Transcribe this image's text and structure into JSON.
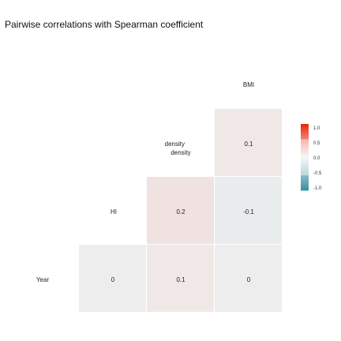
{
  "chart_data": {
    "type": "heatmap",
    "title": "Pairwise correlations with Spearman coefficient",
    "variables": [
      "Year",
      "HI",
      "density",
      "BMI"
    ],
    "cells": [
      {
        "row": "HI",
        "col": "density",
        "value": 0.2,
        "label": "0.2"
      },
      {
        "row": "HI",
        "col": "BMI",
        "value": -0.1,
        "label": "-0.1"
      },
      {
        "row": "Year",
        "col": "HI",
        "value": 0.0,
        "label": "0"
      },
      {
        "row": "Year",
        "col": "density",
        "value": 0.1,
        "label": "0.1"
      },
      {
        "row": "Year",
        "col": "BMI",
        "value": 0.0,
        "label": "0"
      },
      {
        "row": "density",
        "col": "BMI",
        "value": 0.1,
        "label": "0.1"
      }
    ],
    "legend": {
      "position": "right",
      "range": [
        -1,
        1
      ],
      "ticks": [
        "1.0",
        "0.5",
        "0.0",
        "-0.5",
        "-1.0"
      ],
      "colors": {
        "high": "#ee2a0f",
        "mid": "#f2f2f2",
        "low": "#3b93a7"
      }
    }
  }
}
